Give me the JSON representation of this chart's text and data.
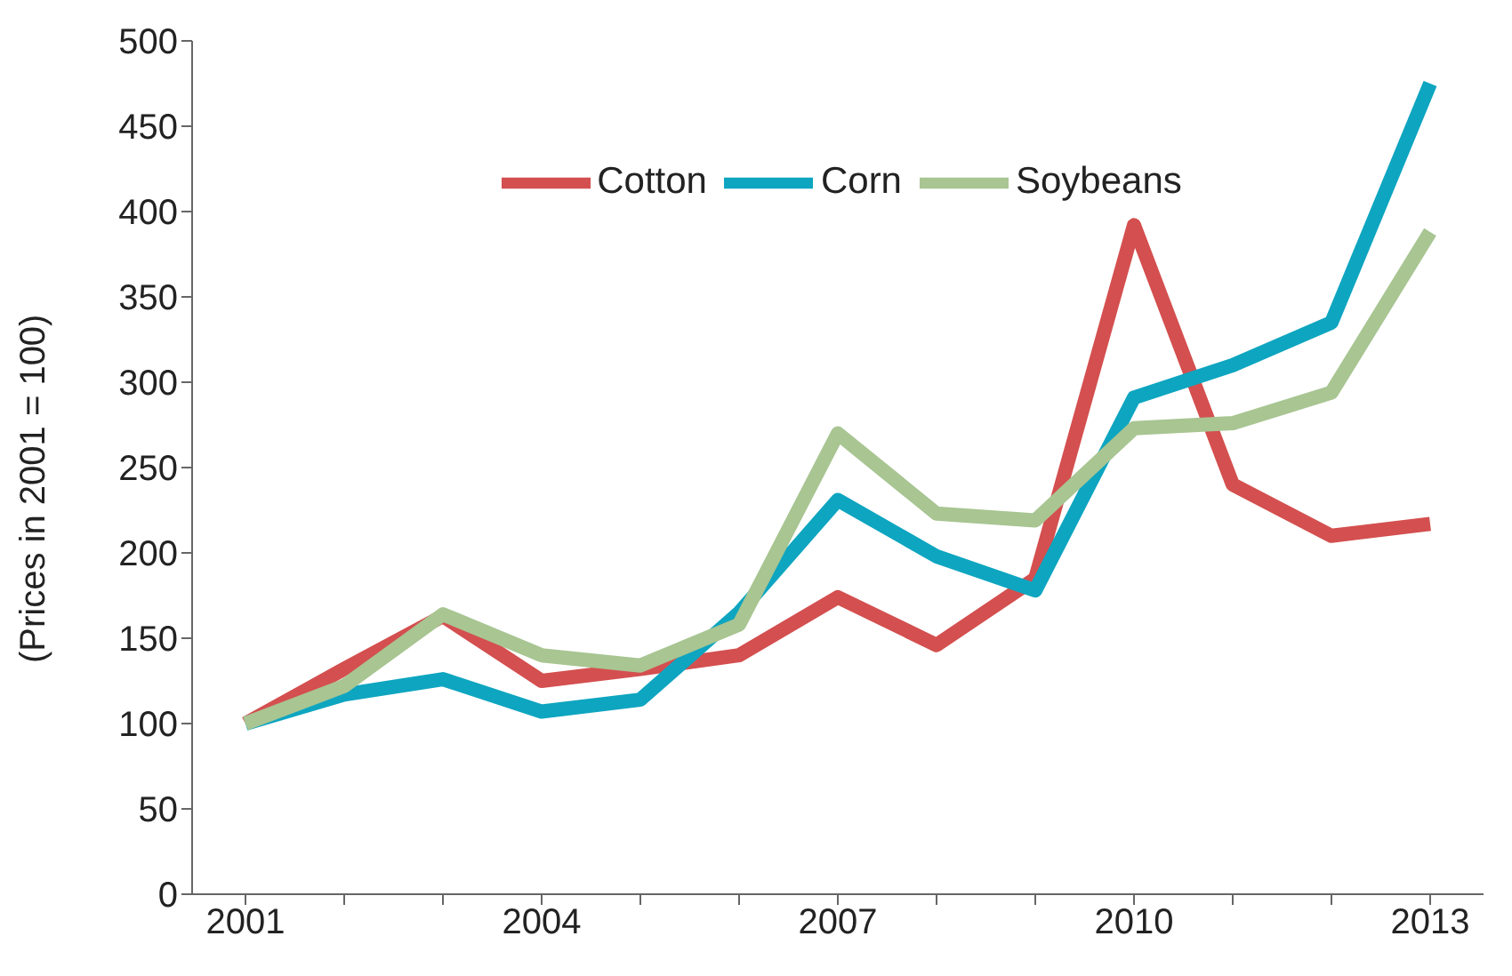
{
  "chart_data": {
    "type": "line",
    "ylabel": "(Prices in 2001 = 100)",
    "categories": [
      "2001",
      null,
      null,
      "2004",
      null,
      null,
      "2007",
      null,
      null,
      "2010",
      null,
      null,
      "2013"
    ],
    "series": [
      {
        "name": "Cotton",
        "color": "#d44f4f",
        "values": [
          100,
          132,
          163,
          125,
          132,
          140,
          174,
          146,
          185,
          392,
          240,
          210,
          217
        ]
      },
      {
        "name": "Corn",
        "color": "#0ea5c0",
        "values": [
          100,
          117,
          126,
          107,
          114,
          165,
          231,
          198,
          178,
          291,
          310,
          335,
          475
        ]
      },
      {
        "name": "Soybeans",
        "color": "#a8c592",
        "values": [
          100,
          122,
          164,
          140,
          134,
          158,
          270,
          223,
          219,
          273,
          276,
          294,
          388
        ]
      }
    ],
    "ylim": [
      0,
      500
    ],
    "yticks": [
      0,
      50,
      100,
      150,
      200,
      250,
      300,
      350,
      400,
      450,
      500
    ],
    "grid": false,
    "legend": "top",
    "marker": "none",
    "line_style": "solid"
  }
}
